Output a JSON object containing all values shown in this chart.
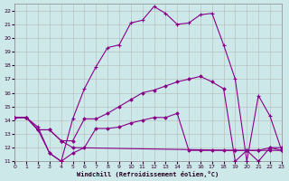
{
  "xlabel": "Windchill (Refroidissement éolien,°C)",
  "xlim": [
    0,
    23
  ],
  "ylim": [
    11,
    22.5
  ],
  "yticks": [
    11,
    12,
    13,
    14,
    15,
    16,
    17,
    18,
    19,
    20,
    21,
    22
  ],
  "xticks": [
    0,
    1,
    2,
    3,
    4,
    5,
    6,
    7,
    8,
    9,
    10,
    11,
    12,
    13,
    14,
    15,
    16,
    17,
    18,
    19,
    20,
    21,
    22,
    23
  ],
  "bg_color": "#cce8e8",
  "grid_color": "#b8b8b8",
  "line_color": "#880088",
  "line1_x": [
    0,
    1,
    2,
    3,
    4,
    5,
    6,
    7,
    8,
    9,
    10,
    11,
    12,
    13,
    14,
    15,
    16,
    17,
    18,
    19,
    20,
    21,
    22,
    23
  ],
  "line1_y": [
    14.2,
    14.2,
    13.5,
    11.6,
    11.0,
    14.1,
    16.3,
    17.9,
    19.3,
    19.5,
    21.1,
    21.3,
    22.3,
    21.8,
    21.0,
    21.1,
    21.7,
    21.8,
    19.5,
    17.0,
    11.0,
    15.8,
    14.3,
    11.8
  ],
  "line2_x": [
    0,
    1,
    2,
    3,
    4,
    5,
    6,
    7,
    8,
    9,
    10,
    11,
    12,
    13,
    14,
    15,
    16,
    17,
    18,
    19,
    20,
    21,
    22,
    23
  ],
  "line2_y": [
    14.2,
    14.2,
    13.3,
    13.3,
    12.5,
    12.5,
    14.1,
    14.1,
    14.5,
    15.0,
    15.5,
    16.0,
    16.2,
    16.5,
    16.8,
    17.0,
    17.2,
    16.8,
    16.3,
    11.0,
    11.8,
    11.8,
    12.0,
    12.0
  ],
  "line3_x": [
    0,
    1,
    2,
    3,
    4,
    5,
    6,
    7,
    8,
    9,
    10,
    11,
    12,
    13,
    14,
    15,
    16,
    17,
    18,
    19,
    20,
    21,
    22,
    23
  ],
  "line3_y": [
    14.2,
    14.2,
    13.3,
    11.6,
    11.0,
    11.6,
    12.0,
    13.4,
    13.4,
    13.5,
    13.8,
    14.0,
    14.2,
    14.2,
    14.5,
    11.8,
    11.8,
    11.8,
    11.8,
    11.8,
    11.8,
    11.0,
    12.0,
    11.8
  ],
  "line4_x": [
    0,
    1,
    2,
    3,
    4,
    5,
    19,
    20,
    21,
    22,
    23
  ],
  "line4_y": [
    14.2,
    14.2,
    13.3,
    13.3,
    12.5,
    12.0,
    11.8,
    11.8,
    11.8,
    11.8,
    11.8
  ]
}
